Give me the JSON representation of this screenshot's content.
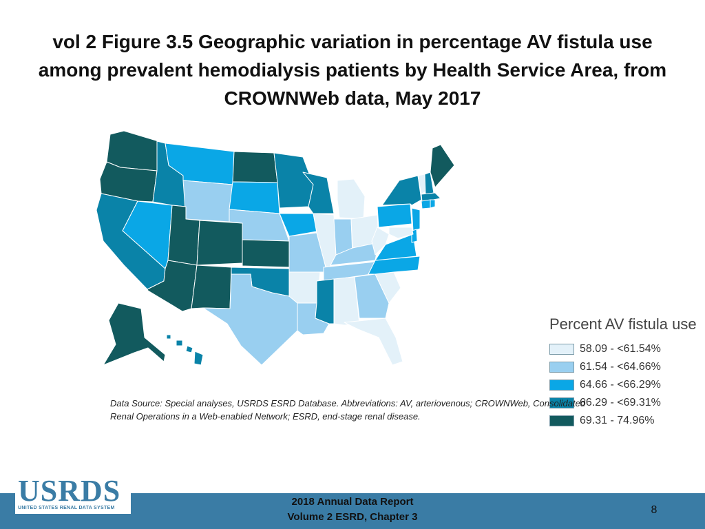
{
  "title": "vol 2 Figure 3.5 Geographic variation in percentage AV fistula use among prevalent hemodialysis patients by Health Service Area, from CROWNWeb data, May 2017",
  "legend": {
    "title": "Percent AV fistula use",
    "items": [
      {
        "label": "58.09 - <61.54%",
        "color": "#e3f1f9"
      },
      {
        "label": "61.54 - <64.66%",
        "color": "#99cff0"
      },
      {
        "label": "64.66 - <66.29%",
        "color": "#0aa7e6"
      },
      {
        "label": "66.29 - <69.31%",
        "color": "#0a83a8"
      },
      {
        "label": "69.31 - 74.96%",
        "color": "#125a5e"
      }
    ]
  },
  "states": {
    "WA": 4,
    "OR": 4,
    "CA": 3,
    "NV": 2,
    "ID": 3,
    "MT": 2,
    "WY": 1,
    "UT": 4,
    "AZ": 4,
    "CO": 4,
    "NM": 4,
    "ND": 4,
    "SD": 2,
    "NE": 1,
    "KS": 4,
    "OK": 3,
    "TX": 1,
    "MN": 3,
    "IA": 2,
    "MO": 1,
    "AR": 0,
    "LA": 1,
    "WI": 3,
    "IL": 0,
    "MI": 0,
    "IN": 1,
    "OH": 0,
    "KY": 1,
    "TN": 1,
    "MS": 3,
    "AL": 0,
    "GA": 1,
    "FL": 0,
    "SC": 0,
    "NC": 2,
    "VA": 2,
    "WV": 0,
    "PA": 2,
    "NY": 3,
    "VT": 0,
    "NH": 3,
    "ME": 4,
    "MA": 3,
    "CT": 2,
    "RI": 2,
    "NJ": 2,
    "DE": 2,
    "MD": 0,
    "AK": 4,
    "HI": 3
  },
  "source_note": "Data Source: Special analyses, USRDS ESRD Database. Abbreviations: AV, arteriovenous; CROWNWeb, Consolidated Renal Operations in a Web-enabled Network; ESRD, end-stage renal disease.",
  "footer": {
    "logo_text": "USRDS",
    "logo_subtext": "UNITED STATES RENAL DATA SYSTEM",
    "report_line1": "2018 Annual Data Report",
    "report_line2": "Volume 2 ESRD, Chapter 3",
    "page_number": "8"
  }
}
